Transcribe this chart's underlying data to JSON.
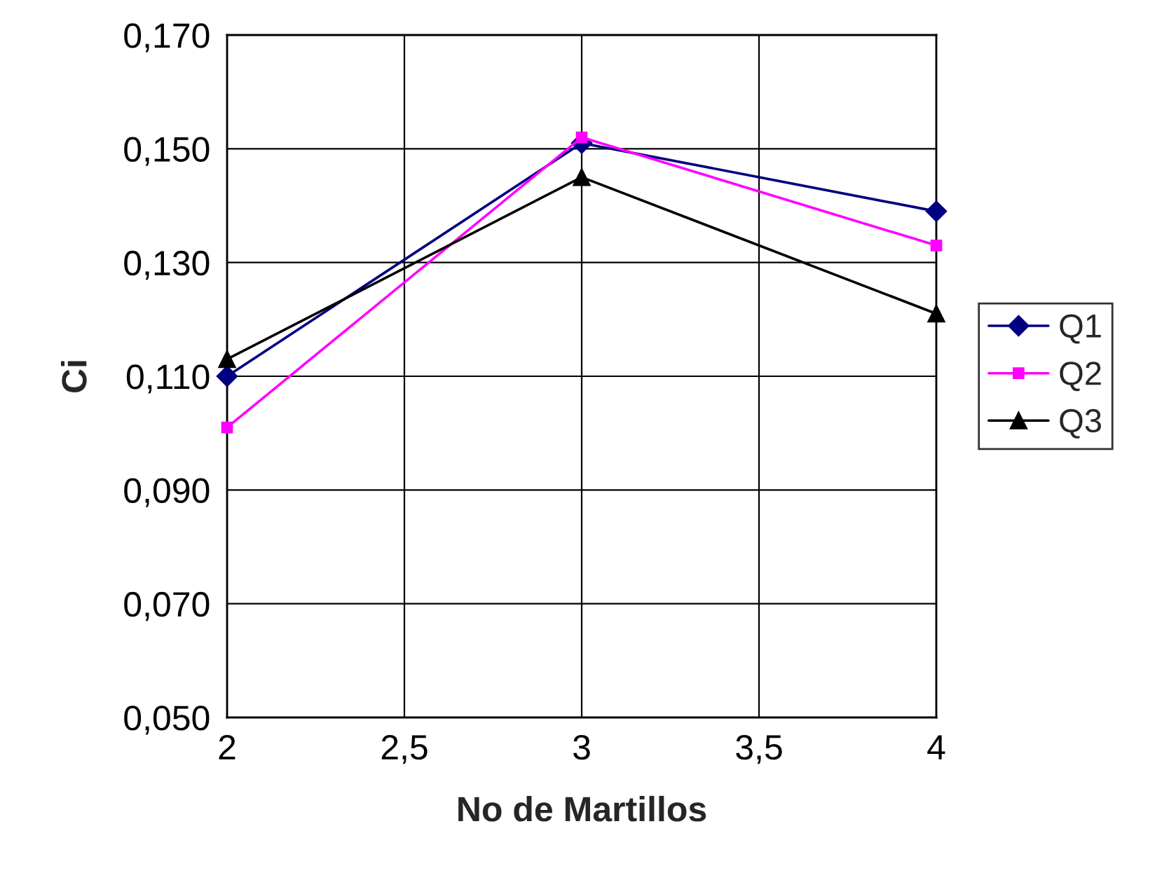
{
  "chart_data": {
    "type": "line",
    "xlabel": "No de Martillos",
    "ylabel": "Ci",
    "x": [
      2,
      3,
      4
    ],
    "series": [
      {
        "name": "Q1",
        "color": "#000080",
        "marker": "diamond",
        "values": [
          0.11,
          0.151,
          0.139
        ]
      },
      {
        "name": "Q2",
        "color": "#ff00ff",
        "marker": "square",
        "values": [
          0.101,
          0.152,
          0.133
        ]
      },
      {
        "name": "Q3",
        "color": "#000000",
        "marker": "triangle",
        "values": [
          0.113,
          0.145,
          0.121
        ]
      }
    ],
    "xlim": [
      2,
      4
    ],
    "xticks": [
      2,
      {
        "value": 2.5,
        "label": "2,5"
      },
      3,
      {
        "value": 3.5,
        "label": "3,5"
      },
      4
    ],
    "ylim": [
      0.05,
      0.17
    ],
    "yticks": [
      {
        "value": 0.05,
        "label": "0,050"
      },
      {
        "value": 0.07,
        "label": "0,070"
      },
      {
        "value": 0.09,
        "label": "0,090"
      },
      {
        "value": 0.11,
        "label": "0,110"
      },
      {
        "value": 0.13,
        "label": "0,130"
      },
      {
        "value": 0.15,
        "label": "0,150"
      },
      {
        "value": 0.17,
        "label": "0,170"
      }
    ],
    "grid": true,
    "legend": "right"
  }
}
